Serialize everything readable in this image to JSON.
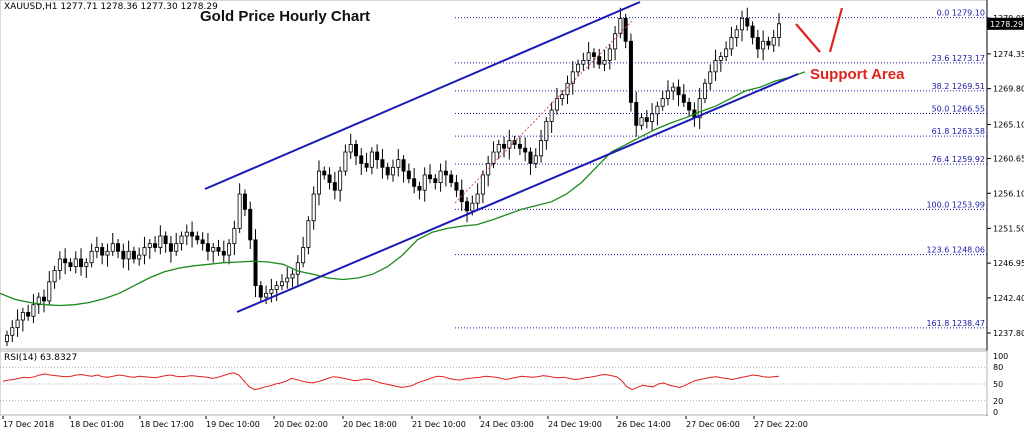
{
  "header": {
    "symbol_line": "XAUUSD,H1 1277.71 1278.36 1277.30 1278.29",
    "title": "Gold Price Hourly Chart"
  },
  "annotations": {
    "support_label": "Support Area"
  },
  "rsi": {
    "label": "RSI(14) 63.8327",
    "ticks": [
      "100",
      "80",
      "50",
      "20",
      "0"
    ],
    "color": "#e02020",
    "values": [
      55,
      57,
      58,
      60,
      62,
      61,
      63,
      66,
      68,
      66,
      65,
      64,
      63,
      64,
      66,
      67,
      65,
      64,
      66,
      63,
      62,
      64,
      66,
      65,
      63,
      62,
      64,
      63,
      62,
      61,
      63,
      65,
      66,
      64,
      63,
      64,
      65,
      64,
      63,
      62,
      60,
      62,
      65,
      68,
      70,
      66,
      55,
      45,
      40,
      42,
      45,
      47,
      50,
      52,
      55,
      60,
      58,
      55,
      53,
      52,
      54,
      57,
      60,
      63,
      62,
      60,
      58,
      56,
      57,
      59,
      58,
      55,
      52,
      50,
      48,
      46,
      44,
      45,
      47,
      52,
      55,
      58,
      62,
      64,
      63,
      60,
      58,
      57,
      59,
      60,
      61,
      62,
      64,
      63,
      62,
      60,
      58,
      60,
      62,
      64,
      63,
      62,
      63,
      65,
      64,
      62,
      61,
      62,
      60,
      58,
      59,
      61,
      62,
      64,
      66,
      67,
      65,
      63,
      56,
      45,
      40,
      44,
      48,
      46,
      45,
      50,
      52,
      48,
      46,
      44,
      47,
      52,
      56,
      58,
      60,
      62,
      63,
      61,
      60,
      58,
      60,
      62,
      64,
      66,
      65,
      63,
      62,
      63,
      64
    ]
  },
  "price_axis": {
    "ticks": [
      "1279.05",
      "1274.35",
      "1269.80",
      "1265.10",
      "1260.65",
      "1256.10",
      "1251.50",
      "1246.95",
      "1242.40",
      "1237.80"
    ],
    "current_price": "1278.29"
  },
  "time_axis": {
    "ticks": [
      "17 Dec 2018",
      "18 Dec 01:00",
      "18 Dec 17:00",
      "19 Dec 10:00",
      "20 Dec 02:00",
      "20 Dec 18:00",
      "21 Dec 10:00",
      "24 Dec 03:00",
      "24 Dec 19:00",
      "26 Dec 14:00",
      "27 Dec 06:00",
      "27 Dec 22:00"
    ]
  },
  "colors": {
    "channel": "#1a1ab8",
    "moving_average": "#1a8a1a",
    "fib_lines": "#1a1aa8",
    "arrows": "#e0231c",
    "fib_swing": "#e05050"
  },
  "chart_data": {
    "type": "candlestick",
    "title": "Gold Price Hourly Chart",
    "symbol": "XAUUSD",
    "timeframe": "H1",
    "ylim": [
      1235,
      1283
    ],
    "fib_levels": [
      {
        "ratio": "0.0",
        "price": 1279.1,
        "label": "0.0 1279.10"
      },
      {
        "ratio": "23.6",
        "price": 1273.17,
        "label": "23.6 1273.17"
      },
      {
        "ratio": "38.2",
        "price": 1269.51,
        "label": "38.2 1269.51"
      },
      {
        "ratio": "50.0",
        "price": 1266.55,
        "label": "50.0 1266.55"
      },
      {
        "ratio": "61.8",
        "price": 1263.58,
        "label": "61.8 1263.58"
      },
      {
        "ratio": "76.4",
        "price": 1259.92,
        "label": "76.4 1259.92"
      },
      {
        "ratio": "100.0",
        "price": 1253.99,
        "label": "100.0 1253.99"
      },
      {
        "ratio": "123.6",
        "price": 1248.06,
        "label": "123.6 1248.06"
      },
      {
        "ratio": "161.8",
        "price": 1238.47,
        "label": "161.8 1238.47"
      }
    ],
    "close": [
      1237.5,
      1238.5,
      1239.5,
      1240.5,
      1240.0,
      1241.5,
      1242.5,
      1242.0,
      1244.5,
      1246.0,
      1247.5,
      1247.0,
      1246.5,
      1247.5,
      1246.5,
      1247.0,
      1248.5,
      1249.0,
      1248.0,
      1248.5,
      1249.5,
      1248.5,
      1247.5,
      1248.5,
      1247.5,
      1248.0,
      1249.0,
      1249.5,
      1249.0,
      1250.5,
      1249.5,
      1248.5,
      1249.5,
      1250.5,
      1251.0,
      1250.5,
      1250.0,
      1249.5,
      1248.5,
      1249.0,
      1248.5,
      1248.0,
      1249.5,
      1251.5,
      1256.0,
      1254.0,
      1250.0,
      1244.0,
      1242.5,
      1243.0,
      1243.5,
      1244.0,
      1244.5,
      1245.0,
      1245.5,
      1247.0,
      1249.0,
      1252.5,
      1256.0,
      1259.0,
      1258.5,
      1257.5,
      1256.5,
      1259.0,
      1261.5,
      1262.5,
      1261.0,
      1260.0,
      1259.5,
      1261.5,
      1260.5,
      1259.5,
      1258.5,
      1259.5,
      1260.5,
      1259.0,
      1258.0,
      1257.0,
      1256.5,
      1258.5,
      1258.0,
      1257.5,
      1259.0,
      1258.5,
      1257.5,
      1256.5,
      1255.0,
      1253.8,
      1254.8,
      1256.0,
      1258.5,
      1260.0,
      1261.5,
      1262.5,
      1262.0,
      1263.0,
      1262.5,
      1262.0,
      1261.5,
      1260.0,
      1261.0,
      1263.0,
      1265.5,
      1267.0,
      1268.5,
      1269.0,
      1270.5,
      1272.0,
      1273.0,
      1273.5,
      1274.5,
      1274.0,
      1273.0,
      1273.5,
      1275.0,
      1277.0,
      1279.0,
      1276.0,
      1268.0,
      1265.0,
      1266.0,
      1265.5,
      1266.5,
      1267.5,
      1268.5,
      1269.5,
      1270.0,
      1269.0,
      1268.0,
      1267.0,
      1266.0,
      1268.5,
      1270.5,
      1272.0,
      1273.5,
      1274.0,
      1275.0,
      1276.5,
      1277.5,
      1279.0,
      1278.0,
      1276.5,
      1275.0,
      1276.0,
      1275.5,
      1276.5,
      1278.29
    ],
    "moving_average": [
      1243.0,
      1242.2,
      1241.8,
      1241.5,
      1241.4,
      1241.5,
      1241.8,
      1242.3,
      1243.0,
      1244.0,
      1245.0,
      1245.8,
      1246.3,
      1246.6,
      1246.8,
      1247.0,
      1247.1,
      1247.2,
      1247.1,
      1246.8,
      1245.9,
      1245.5,
      1245.0,
      1244.8,
      1245.0,
      1245.5,
      1246.5,
      1248.0,
      1250.0,
      1251.0,
      1251.5,
      1251.8,
      1252.0,
      1252.6,
      1253.3,
      1254.0,
      1254.5,
      1255.0,
      1256.0,
      1257.5,
      1259.5,
      1261.5,
      1262.5,
      1263.5,
      1264.5,
      1265.3,
      1266.0,
      1266.8,
      1267.5,
      1268.5,
      1269.5,
      1270.0,
      1270.8,
      1271.3,
      1272.0
    ],
    "channel_upper": [
      [
        205,
        189
      ],
      [
        640,
        2
      ]
    ],
    "channel_lower": [
      [
        237,
        312
      ],
      [
        798,
        74
      ]
    ],
    "fib_swing_line": [
      [
        455,
        203
      ],
      [
        633,
        20
      ]
    ],
    "arrows": [
      [
        [
          796,
          24
        ],
        [
          820,
          52
        ]
      ],
      [
        [
          830,
          52
        ],
        [
          842,
          8
        ]
      ]
    ]
  }
}
